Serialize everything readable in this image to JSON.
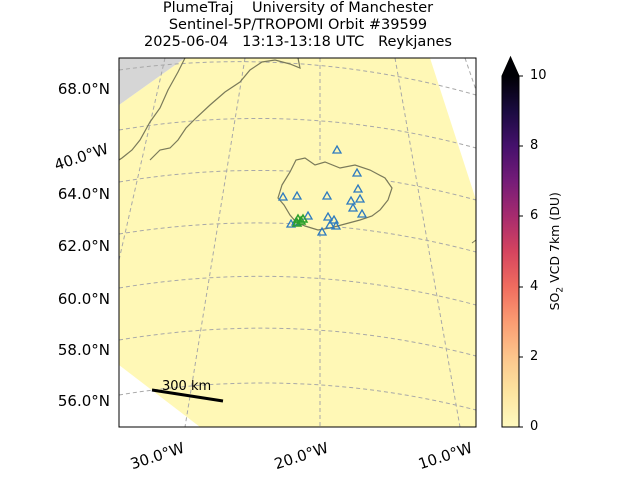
{
  "title": {
    "line1": "PlumeTraj    University of Manchester",
    "line2": "Sentinel-5P/TROPOMI Orbit #39599",
    "line3": "2025-06-04   13:13-13:18 UTC   Reykjanes"
  },
  "lat_labels": [
    "68.0°N",
    "64.0°N",
    "62.0°N",
    "60.0°N",
    "58.0°N",
    "56.0°N"
  ],
  "lon_labels": [
    "40.0°W",
    "30.0°W",
    "20.0°W",
    "10.0°W"
  ],
  "scale_bar": {
    "label": "300 km"
  },
  "colorbar": {
    "label_prefix": "SO",
    "label_sub": "2",
    "label_suffix": " VCD 7km (DU)",
    "ticks": [
      "0",
      "2",
      "4",
      "6",
      "8",
      "10"
    ],
    "min": 0,
    "max": 10,
    "colors": [
      "#fffabf",
      "#fde4a0",
      "#fcb68a",
      "#f9876b",
      "#e4515e",
      "#b52d6c",
      "#7d1d78",
      "#45106c",
      "#15093a",
      "#000004"
    ]
  },
  "colors": {
    "background_field": "#fff8b6",
    "no_data": "#d6d6d6",
    "coastline": "#7a7a5a",
    "volcano_marker": "#2e7bbf",
    "active_marker": "#2ca02c",
    "gridline": "#a8a8a8"
  }
}
